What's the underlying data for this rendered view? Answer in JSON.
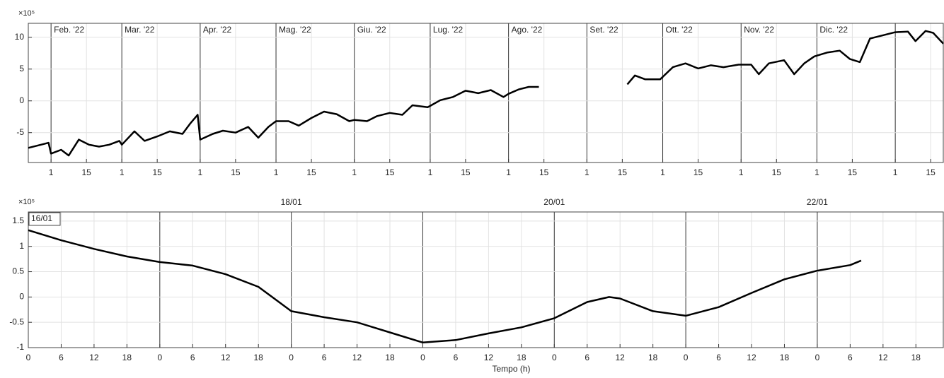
{
  "chart_data": [
    {
      "type": "line",
      "color": "#000000",
      "grid": true,
      "y_multiplier": "×10⁵",
      "xlim": [
        "2022-01-23",
        "2023-01-20"
      ],
      "ylim": [
        -9.7,
        12.2
      ],
      "yticks": [
        -5,
        0,
        5,
        10
      ],
      "xticks": [
        {
          "value": "2022-02-01",
          "label": "1"
        },
        {
          "value": "2022-02-15",
          "label": "15"
        },
        {
          "value": "2022-03-01",
          "label": "1"
        },
        {
          "value": "2022-03-15",
          "label": "15"
        },
        {
          "value": "2022-04-01",
          "label": "1"
        },
        {
          "value": "2022-04-15",
          "label": "15"
        },
        {
          "value": "2022-05-01",
          "label": "1"
        },
        {
          "value": "2022-05-15",
          "label": "15"
        },
        {
          "value": "2022-06-01",
          "label": "1"
        },
        {
          "value": "2022-06-15",
          "label": "15"
        },
        {
          "value": "2022-07-01",
          "label": "1"
        },
        {
          "value": "2022-07-15",
          "label": "15"
        },
        {
          "value": "2022-08-01",
          "label": "1"
        },
        {
          "value": "2022-08-15",
          "label": "15"
        },
        {
          "value": "2022-09-01",
          "label": "1"
        },
        {
          "value": "2022-09-15",
          "label": "15"
        },
        {
          "value": "2022-10-01",
          "label": "1"
        },
        {
          "value": "2022-10-15",
          "label": "15"
        },
        {
          "value": "2022-11-01",
          "label": "1"
        },
        {
          "value": "2022-11-15",
          "label": "15"
        },
        {
          "value": "2022-12-01",
          "label": "1"
        },
        {
          "value": "2022-12-15",
          "label": "15"
        },
        {
          "value": "2023-01-01",
          "label": "1"
        },
        {
          "value": "2023-01-15",
          "label": "15"
        }
      ],
      "annotations": [
        {
          "x": "2022-02-01",
          "text": "Feb. '22"
        },
        {
          "x": "2022-03-01",
          "text": "Mar. '22"
        },
        {
          "x": "2022-04-01",
          "text": "Apr. '22"
        },
        {
          "x": "2022-05-01",
          "text": "Mag. '22"
        },
        {
          "x": "2022-06-01",
          "text": "Giu. '22"
        },
        {
          "x": "2022-07-01",
          "text": "Lug. '22"
        },
        {
          "x": "2022-08-01",
          "text": "Ago. '22"
        },
        {
          "x": "2022-09-01",
          "text": "Set. '22"
        },
        {
          "x": "2022-10-01",
          "text": "Ott. '22"
        },
        {
          "x": "2022-11-01",
          "text": "Nov. '22"
        },
        {
          "x": "2022-12-01",
          "text": "Dic. '22"
        }
      ],
      "x": [
        "2022-01-23",
        "2022-01-28",
        "2022-01-31",
        "2022-02-01",
        "2022-02-05",
        "2022-02-08",
        "2022-02-12",
        "2022-02-16",
        "2022-02-20",
        "2022-02-24",
        "2022-02-28",
        "2022-03-01",
        "2022-03-06",
        "2022-03-10",
        "2022-03-15",
        "2022-03-20",
        "2022-03-25",
        "2022-03-28",
        "2022-03-31",
        "2022-04-01",
        "2022-04-06",
        "2022-04-10",
        "2022-04-15",
        "2022-04-20",
        "2022-04-24",
        "2022-04-28",
        "2022-05-01",
        "2022-05-06",
        "2022-05-10",
        "2022-05-15",
        "2022-05-20",
        "2022-05-25",
        "2022-05-30",
        "2022-06-01",
        "2022-06-06",
        "2022-06-10",
        "2022-06-15",
        "2022-06-20",
        "2022-06-24",
        "2022-06-30",
        "2022-07-01",
        "2022-07-05",
        "2022-07-10",
        "2022-07-15",
        "2022-07-20",
        "2022-07-25",
        "2022-07-30",
        "2022-08-01",
        "2022-08-05",
        "2022-08-09",
        "2022-08-13",
        "2022-09-01",
        "2022-09-17",
        "2022-09-20",
        "2022-09-24",
        "2022-09-30",
        "2022-10-05",
        "2022-10-10",
        "2022-10-15",
        "2022-10-20",
        "2022-10-25",
        "2022-10-31",
        "2022-11-05",
        "2022-11-08",
        "2022-11-12",
        "2022-11-18",
        "2022-11-22",
        "2022-11-26",
        "2022-11-30",
        "2022-12-05",
        "2022-12-10",
        "2022-12-14",
        "2022-12-18",
        "2022-12-22",
        "2022-12-27",
        "2023-01-01",
        "2023-01-06",
        "2023-01-09",
        "2023-01-13",
        "2023-01-16",
        "2023-01-20"
      ],
      "values": [
        -7.4,
        -6.9,
        -6.6,
        -8.3,
        -7.7,
        -8.6,
        -6.1,
        -6.9,
        -7.2,
        -6.9,
        -6.3,
        -6.9,
        -4.8,
        -6.3,
        -5.6,
        -4.8,
        -5.2,
        -3.6,
        -2.2,
        -6.1,
        -5.2,
        -4.7,
        -5.0,
        -4.1,
        -5.8,
        -4.1,
        -3.2,
        -3.2,
        -3.9,
        -2.7,
        -1.7,
        -2.1,
        -3.2,
        -3.0,
        -3.2,
        -2.4,
        -1.9,
        -2.2,
        -0.7,
        -1.0,
        -0.8,
        0.1,
        0.6,
        1.6,
        1.2,
        1.7,
        0.6,
        1.1,
        1.8,
        2.2,
        2.2,
        null,
        2.6,
        4.0,
        3.4,
        3.4,
        5.3,
        5.9,
        5.1,
        5.6,
        5.3,
        5.7,
        5.7,
        4.2,
        5.9,
        6.4,
        4.2,
        5.9,
        7.0,
        7.6,
        7.9,
        6.6,
        6.1,
        9.8,
        10.3,
        10.8,
        10.9,
        9.4,
        11.0,
        10.7,
        9.0
      ]
    },
    {
      "type": "line",
      "color": "#000000",
      "grid": true,
      "y_multiplier": "×10⁵",
      "xlabel": "Tempo (h)",
      "xlim": [
        0,
        167
      ],
      "ylim": [
        -1,
        1.68
      ],
      "yticks": [
        -1,
        -0.5,
        0,
        0.5,
        1,
        1.5
      ],
      "xticks": [
        0,
        {
          "value": 6,
          "label": "6"
        },
        {
          "value": 12,
          "label": "12"
        },
        {
          "value": 18,
          "label": "18"
        },
        {
          "value": 24,
          "label": "0"
        },
        {
          "value": 30,
          "label": "6"
        },
        {
          "value": 36,
          "label": "12"
        },
        {
          "value": 42,
          "label": "18"
        },
        {
          "value": 48,
          "label": "0"
        },
        {
          "value": 54,
          "label": "6"
        },
        {
          "value": 60,
          "label": "12"
        },
        {
          "value": 66,
          "label": "18"
        },
        {
          "value": 72,
          "label": "0"
        },
        {
          "value": 78,
          "label": "6"
        },
        {
          "value": 84,
          "label": "12"
        },
        {
          "value": 90,
          "label": "18"
        },
        {
          "value": 96,
          "label": "0"
        },
        {
          "value": 102,
          "label": "6"
        },
        {
          "value": 108,
          "label": "12"
        },
        {
          "value": 114,
          "label": "18"
        },
        {
          "value": 120,
          "label": "0"
        },
        {
          "value": 126,
          "label": "6"
        },
        {
          "value": 132,
          "label": "12"
        },
        {
          "value": 138,
          "label": "18"
        },
        {
          "value": 144,
          "label": "0"
        },
        {
          "value": 150,
          "label": "6"
        },
        {
          "value": 156,
          "label": "12"
        },
        {
          "value": 162,
          "label": "18"
        }
      ],
      "annotations": [
        {
          "x": 0,
          "text": "16/01"
        },
        {
          "x": 48,
          "text": "18/01"
        },
        {
          "x": 96,
          "text": "20/01"
        },
        {
          "x": 144,
          "text": "22/01"
        }
      ],
      "x": [
        0,
        6,
        12,
        18,
        24,
        30,
        36,
        42,
        48,
        54,
        60,
        66,
        72,
        78,
        84,
        90,
        96,
        102,
        106,
        108,
        114,
        120,
        126,
        132,
        138,
        144,
        150,
        152
      ],
      "values": [
        1.32,
        1.12,
        0.95,
        0.8,
        0.69,
        0.62,
        0.45,
        0.2,
        -0.28,
        -0.4,
        -0.5,
        -0.7,
        -0.9,
        -0.85,
        -0.72,
        -0.6,
        -0.42,
        -0.1,
        0.0,
        -0.03,
        -0.28,
        -0.37,
        -0.2,
        0.08,
        0.35,
        0.52,
        0.63,
        0.72
      ]
    }
  ]
}
